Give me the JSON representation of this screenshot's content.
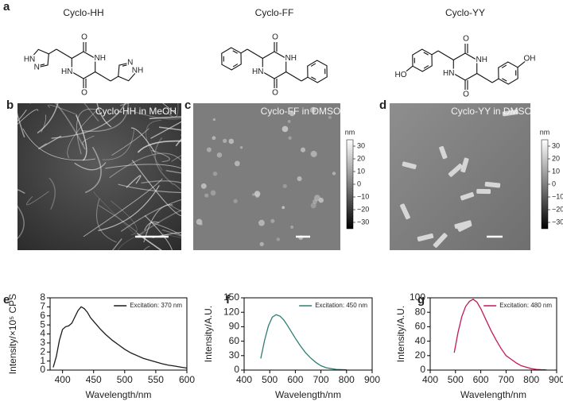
{
  "labels": [
    "a",
    "b",
    "c",
    "d",
    "e",
    "f",
    "g"
  ],
  "molecules": [
    {
      "name": "Cyclo-HH",
      "atoms": [
        "O",
        "NH",
        "O",
        "HN",
        "N",
        "HN",
        "N",
        "NH"
      ]
    },
    {
      "name": "Cyclo-FF",
      "atoms": [
        "O",
        "NH",
        "O",
        "HN"
      ]
    },
    {
      "name": "Cyclo-YY",
      "atoms": [
        "O",
        "NH",
        "O",
        "HN",
        "HO",
        "OH"
      ]
    }
  ],
  "images": [
    {
      "caption": "Cyclo-HH in MeOH"
    },
    {
      "caption": "Cyclo-FF in DMSO",
      "colorbar": {
        "unit": "nm",
        "range": [
          -35,
          35
        ],
        "ticks": [
          30,
          20,
          10,
          0,
          {
            "value": -10,
            "label": "−10"
          },
          {
            "value": -20,
            "label": "−20"
          },
          {
            "value": -30,
            "label": "−30"
          }
        ]
      }
    },
    {
      "caption": "Cyclo-YY in DMSO",
      "colorbar": {
        "unit": "nm",
        "range": [
          -35,
          35
        ],
        "ticks": [
          30,
          20,
          10,
          0,
          {
            "value": -10,
            "label": "−10"
          },
          {
            "value": -20,
            "label": "−20"
          },
          {
            "value": -30,
            "label": "−30"
          }
        ]
      }
    }
  ],
  "chart_data": [
    {
      "type": "line",
      "xlabel": "Wavelength/nm",
      "ylabel": "Intensity/×10⁵ CPS",
      "xlim": [
        380,
        600
      ],
      "xticks": [
        400,
        450,
        500,
        550,
        600
      ],
      "ylim": [
        0,
        8
      ],
      "yticks": [
        0,
        1,
        2,
        3,
        4,
        5,
        6,
        7,
        8
      ],
      "x": [
        385,
        390,
        395,
        400,
        405,
        410,
        415,
        420,
        425,
        430,
        435,
        440,
        445,
        450,
        460,
        470,
        480,
        490,
        500,
        510,
        520,
        530,
        540,
        550,
        560,
        570,
        580,
        590,
        600
      ],
      "series": [
        {
          "name": "Excitation: 370 nm",
          "color": "#1a1a1a",
          "values": [
            0.3,
            1.5,
            3.3,
            4.5,
            4.8,
            4.9,
            5.2,
            5.9,
            6.6,
            7.0,
            6.8,
            6.4,
            5.8,
            5.4,
            4.6,
            3.9,
            3.3,
            2.8,
            2.3,
            1.9,
            1.6,
            1.3,
            1.1,
            0.9,
            0.7,
            0.55,
            0.45,
            0.33,
            0.22
          ]
        }
      ]
    },
    {
      "type": "line",
      "xlabel": "Wavelength/nm",
      "ylabel": "Intensity/A.U.",
      "xlim": [
        400,
        900
      ],
      "xticks": [
        400,
        500,
        600,
        700,
        800,
        900
      ],
      "ylim": [
        0,
        150
      ],
      "yticks": [
        0,
        30,
        60,
        90,
        120,
        150
      ],
      "x": [
        465,
        480,
        495,
        510,
        525,
        540,
        555,
        570,
        585,
        600,
        620,
        640,
        660,
        680,
        700,
        720,
        740,
        760,
        780,
        800
      ],
      "series": [
        {
          "name": "Excitation: 450 nm",
          "color": "#2e7d73",
          "values": [
            24,
            62,
            92,
            110,
            115,
            112,
            104,
            92,
            79,
            66,
            50,
            36,
            25,
            16,
            9,
            5,
            3,
            1.5,
            1,
            0.5
          ]
        }
      ]
    },
    {
      "type": "line",
      "xlabel": "Wavelength/nm",
      "ylabel": "Intensity/A.U.",
      "xlim": [
        400,
        900
      ],
      "xticks": [
        400,
        500,
        600,
        700,
        800,
        900
      ],
      "ylim": [
        0,
        100
      ],
      "yticks": [
        0,
        20,
        40,
        60,
        80,
        100
      ],
      "x": [
        495,
        510,
        525,
        540,
        555,
        570,
        585,
        600,
        620,
        640,
        660,
        680,
        700,
        720,
        740,
        760,
        780,
        800,
        820,
        840,
        860
      ],
      "series": [
        {
          "name": "Excitation: 480 nm",
          "color": "#c2185b",
          "values": [
            24,
            52,
            74,
            88,
            95,
            98,
            94,
            85,
            70,
            55,
            42,
            30,
            20,
            15,
            10,
            6,
            4,
            2,
            1,
            0.5,
            0.3
          ]
        }
      ]
    }
  ]
}
